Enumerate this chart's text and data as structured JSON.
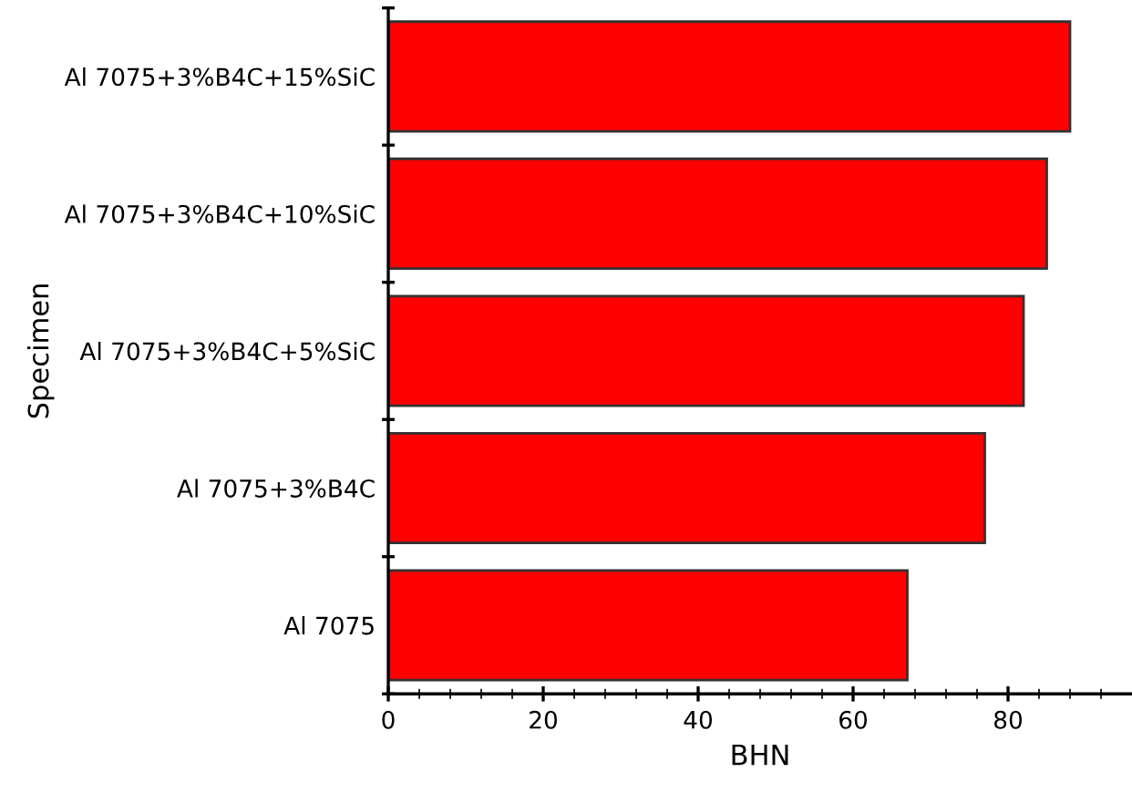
{
  "chart_data": {
    "type": "bar",
    "orientation": "horizontal",
    "xlabel": "BHN",
    "ylabel": "Specimen",
    "categories": [
      "Al 7075+3%B4C+15%SiC",
      "Al 7075+3%B4C+10%SiC",
      "Al 7075+3%B4C+5%SiC",
      "Al 7075+3%B4C",
      "Al 7075"
    ],
    "values": [
      88,
      85,
      82,
      77,
      67
    ],
    "color": "#ff0000",
    "xlim": [
      0,
      96
    ],
    "xticks": [
      0,
      {
        "value": 4,
        "label": null
      },
      {
        "value": 8,
        "label": null
      },
      {
        "value": 12,
        "label": null
      },
      {
        "value": 16,
        "label": null
      },
      20,
      {
        "value": 24,
        "label": null
      },
      {
        "value": 28,
        "label": null
      },
      {
        "value": 32,
        "label": null
      },
      {
        "value": 36,
        "label": null
      },
      40,
      {
        "value": 44,
        "label": null
      },
      {
        "value": 48,
        "label": null
      },
      {
        "value": 52,
        "label": null
      },
      {
        "value": 56,
        "label": null
      },
      60,
      {
        "value": 64,
        "label": null
      },
      {
        "value": 68,
        "label": null
      },
      {
        "value": 72,
        "label": null
      },
      {
        "value": 76,
        "label": null
      },
      80,
      {
        "value": 84,
        "label": null
      },
      {
        "value": 88,
        "label": null
      },
      {
        "value": 92,
        "label": null
      }
    ],
    "grid": false
  }
}
